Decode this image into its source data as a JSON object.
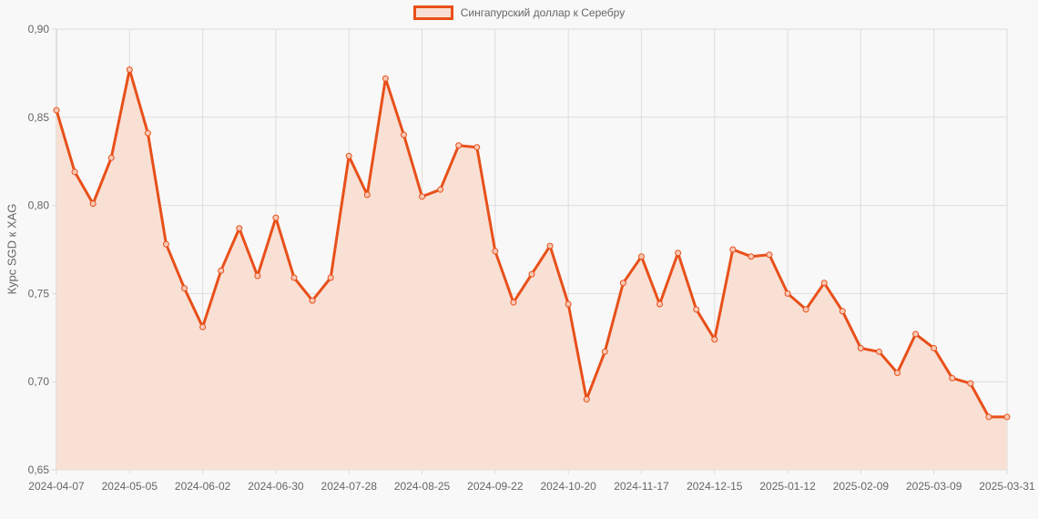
{
  "legend": {
    "label": "Сингапурский доллар к Серебру"
  },
  "colors": {
    "line": "#e8501a",
    "fill": "#f8e0d5",
    "grid": "#dddddd",
    "background": "#f8f8f8",
    "text": "#666666"
  },
  "chart_data": {
    "type": "line",
    "title": "",
    "xlabel": "",
    "ylabel": "Курс SGD к XAG",
    "ylim": [
      0.65,
      0.9
    ],
    "yticks": [
      "0,65",
      "0,70",
      "0,75",
      "0,80",
      "0,85",
      "0,90"
    ],
    "xticks": [
      "2024-04-07",
      "2024-05-05",
      "2024-06-02",
      "2024-06-30",
      "2024-07-28",
      "2024-08-25",
      "2024-09-22",
      "2024-10-20",
      "2024-11-17",
      "2024-12-15",
      "2025-01-12",
      "2025-02-09",
      "2025-03-09",
      "2025-03-31"
    ],
    "grid": true,
    "legend_position": "top",
    "series": [
      {
        "name": "Сингапурский доллар к Серебру",
        "x": [
          "2024-04-07",
          "2024-04-14",
          "2024-04-21",
          "2024-04-28",
          "2024-05-05",
          "2024-05-12",
          "2024-05-19",
          "2024-05-26",
          "2024-06-02",
          "2024-06-09",
          "2024-06-16",
          "2024-06-23",
          "2024-06-30",
          "2024-07-07",
          "2024-07-14",
          "2024-07-21",
          "2024-07-28",
          "2024-08-04",
          "2024-08-11",
          "2024-08-18",
          "2024-08-25",
          "2024-09-01",
          "2024-09-08",
          "2024-09-15",
          "2024-09-22",
          "2024-09-29",
          "2024-10-06",
          "2024-10-13",
          "2024-10-20",
          "2024-10-27",
          "2024-11-03",
          "2024-11-10",
          "2024-11-17",
          "2024-11-24",
          "2024-12-01",
          "2024-12-08",
          "2024-12-15",
          "2024-12-22",
          "2024-12-29",
          "2025-01-05",
          "2025-01-12",
          "2025-01-19",
          "2025-01-26",
          "2025-02-02",
          "2025-02-09",
          "2025-02-16",
          "2025-02-23",
          "2025-03-02",
          "2025-03-09",
          "2025-03-16",
          "2025-03-23",
          "2025-03-30",
          "2025-03-31"
        ],
        "values": [
          0.854,
          0.819,
          0.801,
          0.827,
          0.877,
          0.841,
          0.778,
          0.753,
          0.731,
          0.763,
          0.787,
          0.76,
          0.793,
          0.759,
          0.746,
          0.759,
          0.828,
          0.806,
          0.872,
          0.84,
          0.805,
          0.809,
          0.834,
          0.833,
          0.774,
          0.745,
          0.761,
          0.777,
          0.744,
          0.69,
          0.717,
          0.756,
          0.771,
          0.744,
          0.773,
          0.741,
          0.724,
          0.775,
          0.771,
          0.772,
          0.75,
          0.741,
          0.756,
          0.74,
          0.719,
          0.717,
          0.705,
          0.727,
          0.719,
          0.702,
          0.699,
          0.68,
          0.68
        ]
      }
    ]
  }
}
